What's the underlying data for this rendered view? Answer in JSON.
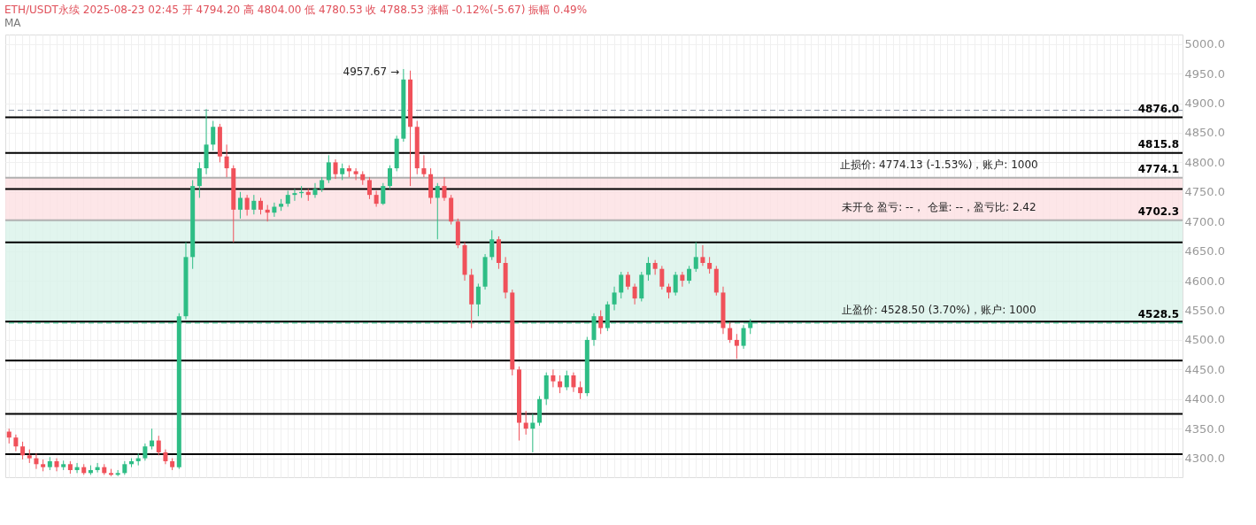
{
  "chart_data": {
    "type": "candlestick",
    "title": "ETH/USDT永续  2025-08-23 02:45  开 4794.20  高 4804.00  低 4780.53  收 4788.53  涨幅 -0.12%(-5.67)  振幅 0.49%",
    "subtitle": "MA",
    "categories": [
      null,
      null,
      null,
      null,
      null,
      null,
      null,
      null,
      null,
      null,
      null,
      null,
      null,
      null,
      null,
      null,
      null,
      null,
      null,
      null,
      null,
      null,
      null,
      null,
      null,
      null,
      null,
      null,
      null,
      null,
      null,
      null,
      null,
      null,
      null,
      null,
      null,
      null,
      null,
      null,
      null,
      null,
      null,
      null,
      null,
      null,
      null,
      null,
      null,
      null,
      null,
      null,
      null,
      null,
      null,
      null,
      null,
      null,
      null,
      null,
      null,
      null,
      null,
      null,
      null,
      null,
      null,
      null,
      null,
      null,
      null,
      null,
      null,
      null,
      null,
      null,
      null,
      null,
      null,
      null,
      null,
      null,
      null,
      null,
      null,
      null,
      null,
      null,
      null,
      null,
      null,
      null,
      null,
      null,
      null,
      null,
      null,
      null,
      null,
      null,
      null,
      null,
      null,
      null,
      null,
      null,
      null,
      null,
      null,
      null,
      null,
      null,
      null,
      null,
      null,
      null,
      null,
      null,
      null,
      null,
      null,
      null,
      null,
      null,
      null,
      null,
      null,
      null,
      null,
      null,
      null,
      null,
      null,
      null,
      null,
      null,
      null,
      null,
      null,
      null,
      null,
      null,
      null,
      null,
      null,
      null,
      null,
      null,
      null,
      null,
      null,
      null,
      null,
      null,
      null,
      null,
      null,
      null,
      null,
      null,
      null,
      null,
      null,
      null,
      null,
      null,
      null,
      null,
      null,
      null,
      null,
      null,
      null
    ],
    "ohlc": [
      [
        4345,
        4350,
        4325,
        4335
      ],
      [
        4335,
        4340,
        4312,
        4320
      ],
      [
        4320,
        4328,
        4298,
        4305
      ],
      [
        4305,
        4315,
        4292,
        4300
      ],
      [
        4300,
        4308,
        4282,
        4290
      ],
      [
        4290,
        4298,
        4278,
        4285
      ],
      [
        4285,
        4302,
        4280,
        4295
      ],
      [
        4295,
        4300,
        4278,
        4285
      ],
      [
        4285,
        4296,
        4280,
        4290
      ],
      [
        4290,
        4295,
        4274,
        4280
      ],
      [
        4280,
        4292,
        4275,
        4285
      ],
      [
        4285,
        4290,
        4272,
        4275
      ],
      [
        4275,
        4288,
        4272,
        4280
      ],
      [
        4280,
        4292,
        4276,
        4285
      ],
      [
        4285,
        4290,
        4272,
        4275
      ],
      [
        4275,
        4282,
        4270,
        4272
      ],
      [
        4272,
        4280,
        4270,
        4275
      ],
      [
        4275,
        4295,
        4272,
        4290
      ],
      [
        4290,
        4300,
        4285,
        4295
      ],
      [
        4295,
        4308,
        4288,
        4300
      ],
      [
        4300,
        4325,
        4296,
        4320
      ],
      [
        4320,
        4350,
        4315,
        4330
      ],
      [
        4330,
        4338,
        4305,
        4310
      ],
      [
        4310,
        4315,
        4290,
        4295
      ],
      [
        4295,
        4300,
        4280,
        4285
      ],
      [
        4285,
        4545,
        4282,
        4540
      ],
      [
        4540,
        4665,
        4535,
        4640
      ],
      [
        4640,
        4770,
        4620,
        4760
      ],
      [
        4760,
        4800,
        4740,
        4790
      ],
      [
        4790,
        4890,
        4780,
        4830
      ],
      [
        4830,
        4870,
        4820,
        4860
      ],
      [
        4860,
        4865,
        4800,
        4810
      ],
      [
        4810,
        4830,
        4775,
        4790
      ],
      [
        4790,
        4795,
        4665,
        4720
      ],
      [
        4720,
        4750,
        4705,
        4740
      ],
      [
        4740,
        4745,
        4710,
        4720
      ],
      [
        4720,
        4745,
        4712,
        4735
      ],
      [
        4735,
        4740,
        4712,
        4720
      ],
      [
        4720,
        4728,
        4700,
        4715
      ],
      [
        4715,
        4732,
        4708,
        4725
      ],
      [
        4725,
        4738,
        4718,
        4730
      ],
      [
        4730,
        4752,
        4725,
        4745
      ],
      [
        4745,
        4755,
        4735,
        4748
      ],
      [
        4748,
        4760,
        4740,
        4750
      ],
      [
        4750,
        4755,
        4735,
        4745
      ],
      [
        4745,
        4765,
        4740,
        4755
      ],
      [
        4755,
        4775,
        4750,
        4770
      ],
      [
        4770,
        4812,
        4765,
        4800
      ],
      [
        4800,
        4805,
        4772,
        4780
      ],
      [
        4780,
        4798,
        4770,
        4790
      ],
      [
        4790,
        4795,
        4775,
        4785
      ],
      [
        4785,
        4790,
        4770,
        4780
      ],
      [
        4780,
        4785,
        4762,
        4770
      ],
      [
        4770,
        4775,
        4738,
        4745
      ],
      [
        4745,
        4752,
        4725,
        4730
      ],
      [
        4730,
        4765,
        4728,
        4760
      ],
      [
        4760,
        4795,
        4755,
        4790
      ],
      [
        4790,
        4845,
        4785,
        4840
      ],
      [
        4840,
        4957.67,
        4835,
        4940
      ],
      [
        4940,
        4955,
        4760,
        4860
      ],
      [
        4860,
        4870,
        4780,
        4790
      ],
      [
        4790,
        4812,
        4775,
        4780
      ],
      [
        4780,
        4790,
        4730,
        4740
      ],
      [
        4740,
        4765,
        4670,
        4760
      ],
      [
        4760,
        4775,
        4735,
        4740
      ],
      [
        4740,
        4745,
        4695,
        4700
      ],
      [
        4700,
        4705,
        4655,
        4660
      ],
      [
        4660,
        4665,
        4600,
        4610
      ],
      [
        4610,
        4620,
        4520,
        4560
      ],
      [
        4560,
        4595,
        4540,
        4590
      ],
      [
        4590,
        4645,
        4585,
        4640
      ],
      [
        4640,
        4685,
        4635,
        4670
      ],
      [
        4670,
        4675,
        4620,
        4630
      ],
      [
        4630,
        4640,
        4570,
        4580
      ],
      [
        4580,
        4585,
        4440,
        4450
      ],
      [
        4450,
        4455,
        4330,
        4360
      ],
      [
        4360,
        4380,
        4340,
        4350
      ],
      [
        4350,
        4375,
        4310,
        4360
      ],
      [
        4360,
        4405,
        4355,
        4400
      ],
      [
        4400,
        4445,
        4390,
        4440
      ],
      [
        4440,
        4450,
        4420,
        4430
      ],
      [
        4430,
        4440,
        4410,
        4420
      ],
      [
        4420,
        4448,
        4415,
        4440
      ],
      [
        4440,
        4445,
        4412,
        4420
      ],
      [
        4420,
        4430,
        4400,
        4410
      ],
      [
        4410,
        4505,
        4405,
        4500
      ],
      [
        4500,
        4545,
        4490,
        4540
      ],
      [
        4540,
        4550,
        4510,
        4520
      ],
      [
        4520,
        4565,
        4515,
        4560
      ],
      [
        4560,
        4590,
        4550,
        4580
      ],
      [
        4580,
        4615,
        4570,
        4610
      ],
      [
        4610,
        4615,
        4585,
        4590
      ],
      [
        4590,
        4595,
        4560,
        4570
      ],
      [
        4570,
        4615,
        4565,
        4610
      ],
      [
        4610,
        4640,
        4600,
        4630
      ],
      [
        4630,
        4635,
        4610,
        4620
      ],
      [
        4620,
        4625,
        4585,
        4590
      ],
      [
        4590,
        4595,
        4570,
        4580
      ],
      [
        4580,
        4615,
        4575,
        4610
      ],
      [
        4610,
        4615,
        4590,
        4600
      ],
      [
        4600,
        4625,
        4595,
        4620
      ],
      [
        4620,
        4665,
        4615,
        4640
      ],
      [
        4640,
        4660,
        4625,
        4630
      ],
      [
        4630,
        4640,
        4612,
        4620
      ],
      [
        4620,
        4625,
        4575,
        4580
      ],
      [
        4580,
        4590,
        4510,
        4520
      ],
      [
        4520,
        4530,
        4495,
        4500
      ],
      [
        4500,
        4510,
        4468,
        4490
      ],
      [
        4490,
        4525,
        4485,
        4520
      ],
      [
        4520,
        4535,
        4510,
        4530
      ],
      null,
      null,
      null,
      null,
      null,
      null,
      null,
      null,
      null,
      null,
      null,
      null,
      null,
      null,
      null,
      null,
      null,
      null,
      null,
      null,
      null,
      null,
      null,
      null,
      null,
      null,
      null,
      null,
      null,
      null,
      null,
      null,
      null,
      null,
      null,
      null,
      null,
      null,
      null,
      null,
      null,
      null,
      null,
      null,
      null,
      null,
      null,
      null,
      null,
      null,
      null,
      null,
      null,
      null,
      null,
      null,
      null,
      null,
      null,
      null,
      null,
      null,
      null
    ],
    "colors": [
      "#f0515a",
      "#f0515a",
      "#f0515a",
      "#f0515a",
      "#f0515a",
      "#f0515a",
      "#2ebd85",
      "#f0515a",
      "#2ebd85",
      "#f0515a",
      "#2ebd85",
      "#f0515a",
      "#2ebd85",
      "#2ebd85",
      "#f0515a",
      "#f0515a",
      "#2ebd85",
      "#2ebd85",
      "#2ebd85",
      "#2ebd85",
      "#2ebd85",
      "#2ebd85",
      "#f0515a",
      "#f0515a",
      "#f0515a",
      "#2ebd85",
      "#2ebd85",
      "#2ebd85",
      "#2ebd85",
      "#2ebd85",
      "#2ebd85",
      "#f0515a",
      "#f0515a",
      "#f0515a",
      "#2ebd85",
      "#f0515a",
      "#2ebd85",
      "#f0515a",
      "#f0515a",
      "#2ebd85",
      "#2ebd85",
      "#2ebd85",
      "#2ebd85",
      "#2ebd85",
      "#f0515a",
      "#2ebd85",
      "#2ebd85",
      "#2ebd85",
      "#f0515a",
      "#2ebd85",
      "#f0515a",
      "#f0515a",
      "#f0515a",
      "#f0515a",
      "#f0515a",
      "#2ebd85",
      "#2ebd85",
      "#2ebd85",
      "#2ebd85",
      "#f0515a",
      "#f0515a",
      "#f0515a",
      "#f0515a",
      "#2ebd85",
      "#f0515a",
      "#f0515a",
      "#f0515a",
      "#f0515a",
      "#f0515a",
      "#2ebd85",
      "#2ebd85",
      "#2ebd85",
      "#f0515a",
      "#f0515a",
      "#f0515a",
      "#f0515a",
      "#f0515a",
      "#2ebd85",
      "#2ebd85",
      "#2ebd85",
      "#f0515a",
      "#f0515a",
      "#2ebd85",
      "#f0515a",
      "#f0515a",
      "#2ebd85",
      "#2ebd85",
      "#f0515a",
      "#2ebd85",
      "#2ebd85",
      "#2ebd85",
      "#f0515a",
      "#f0515a",
      "#2ebd85",
      "#2ebd85",
      "#f0515a",
      "#f0515a",
      "#f0515a",
      "#2ebd85",
      "#f0515a",
      "#2ebd85",
      "#2ebd85",
      "#f0515a",
      "#f0515a",
      "#f0515a",
      "#f0515a",
      "#f0515a",
      "#f0515a",
      "#2ebd85",
      "#2ebd85",
      null,
      null,
      null,
      null,
      null,
      null,
      null,
      null,
      null,
      null,
      null,
      null,
      null,
      null,
      null,
      null,
      null,
      null,
      null,
      null,
      null,
      null,
      null,
      null,
      null,
      null,
      null,
      null,
      null,
      null,
      null,
      null,
      null,
      null,
      null,
      null,
      null,
      null,
      null,
      null,
      null,
      null,
      null,
      null,
      null,
      null,
      null,
      null,
      null,
      null,
      null,
      null,
      null,
      null,
      null,
      null,
      null,
      null,
      null,
      null,
      null,
      null,
      null
    ],
    "ylim": [
      4268,
      5016
    ],
    "yticks": [
      {
        "value": 4300,
        "label": "4300.0"
      },
      {
        "value": 4350,
        "label": "4350.0"
      },
      {
        "value": 4400,
        "label": "4400.0"
      },
      {
        "value": 4450,
        "label": "4450.0"
      },
      {
        "value": 4500,
        "label": "4500.0"
      },
      {
        "value": 4550,
        "label": "4550.0"
      },
      {
        "value": 4600,
        "label": "4600.0"
      },
      {
        "value": 4650,
        "label": "4650.0"
      },
      {
        "value": 4700,
        "label": "4700.0"
      },
      {
        "value": 4750,
        "label": "4750.0"
      },
      {
        "value": 4800,
        "label": "4800.0"
      },
      {
        "value": 4850,
        "label": "4850.0"
      },
      {
        "value": 4900,
        "label": "4900.0"
      },
      {
        "value": 4950,
        "label": "4950.0"
      },
      {
        "value": 5000,
        "label": "5000.0"
      }
    ],
    "tick_labels": "y",
    "grid": true,
    "bands": [
      {
        "axis": "y",
        "from": 4702.3,
        "to": 4774.13,
        "color": "#fde0e2"
      },
      {
        "axis": "y",
        "from": 4528.5,
        "to": 4702.3,
        "color": "#d9f3ea"
      }
    ],
    "ref_lines": [
      {
        "axis": "y",
        "value": 4888,
        "color": "#8a93a6",
        "line_style": "dashed"
      },
      {
        "axis": "y",
        "value": 4876,
        "label": "4876.0",
        "color": "#000000",
        "line_style": "solid"
      },
      {
        "axis": "y",
        "value": 4815.8,
        "label": "4815.8",
        "color": "#000000",
        "line_style": "solid"
      },
      {
        "axis": "y",
        "value": 4774.13,
        "label": "4774.1",
        "color": "#b0b0b0",
        "line_style": "solid"
      },
      {
        "axis": "y",
        "value": 4755,
        "color": "#000000",
        "line_style": "solid"
      },
      {
        "axis": "y",
        "value": 4702.3,
        "label": "4702.3",
        "color": "#b0b0b0",
        "line_style": "solid"
      },
      {
        "axis": "y",
        "value": 4665,
        "color": "#000000",
        "line_style": "solid"
      },
      {
        "axis": "y",
        "value": 4531,
        "color": "#000000",
        "line_style": "solid"
      },
      {
        "axis": "y",
        "value": 4528.5,
        "label": "4528.5",
        "color": "#2ebd85",
        "line_style": "dashed"
      },
      {
        "axis": "y",
        "value": 4465,
        "color": "#000000",
        "line_style": "solid"
      },
      {
        "axis": "y",
        "value": 4375,
        "color": "#000000",
        "line_style": "solid"
      },
      {
        "axis": "y",
        "value": 4307,
        "color": "#000000",
        "line_style": "solid"
      }
    ],
    "annotations": [
      "4957.67 →",
      {
        "text": "止损价: 4774.13 (-1.53%)，账户: 1000",
        "y": 4774.13
      },
      {
        "text": "未开仓  盈亏: --，  仓量: --，盈亏比: 2.42",
        "y": 4702.3
      },
      {
        "text": "止盈价: 4528.50 (3.70%)，账户: 1000",
        "y": 4528.5
      }
    ]
  }
}
